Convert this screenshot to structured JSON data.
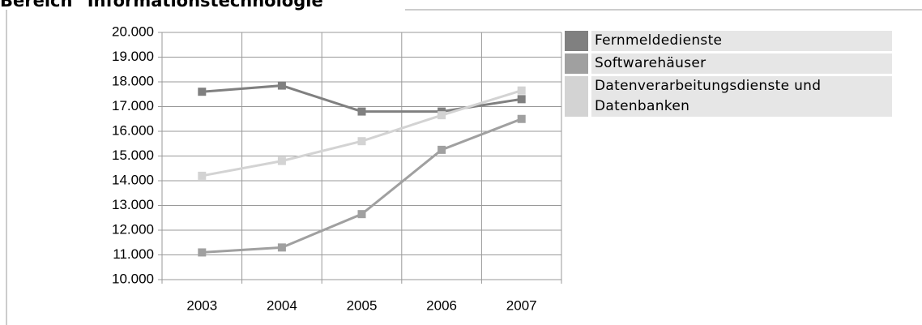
{
  "chart_data": {
    "type": "line",
    "title": "Bereich \"Informationstechnologie\"",
    "categories": [
      "2003",
      "2004",
      "2005",
      "2006",
      "2007"
    ],
    "series": [
      {
        "name": "Fernmeldedienste",
        "color": "#808080",
        "values": [
          17600,
          17850,
          16800,
          16800,
          17300
        ]
      },
      {
        "name": "Softwarehäuser",
        "color": "#a0a0a0",
        "values": [
          11100,
          11300,
          12650,
          15250,
          16500
        ]
      },
      {
        "name": "Datenverarbeitungsdienste und Datenbanken",
        "color": "#d3d3d3",
        "values": [
          14200,
          14800,
          15600,
          16650,
          17650
        ]
      }
    ],
    "ylim": [
      10000,
      20000
    ],
    "yticks": [
      {
        "value": 10000,
        "label": "10.000"
      },
      {
        "value": 11000,
        "label": "11.000"
      },
      {
        "value": 12000,
        "label": "12.000"
      },
      {
        "value": 13000,
        "label": "13.000"
      },
      {
        "value": 14000,
        "label": "14.000"
      },
      {
        "value": 15000,
        "label": "15.000"
      },
      {
        "value": 16000,
        "label": "16.000"
      },
      {
        "value": 17000,
        "label": "17.000"
      },
      {
        "value": 18000,
        "label": "18.000"
      },
      {
        "value": 19000,
        "label": "19.000"
      },
      {
        "value": 20000,
        "label": "20.000"
      }
    ],
    "grid": true,
    "legend": "right"
  }
}
